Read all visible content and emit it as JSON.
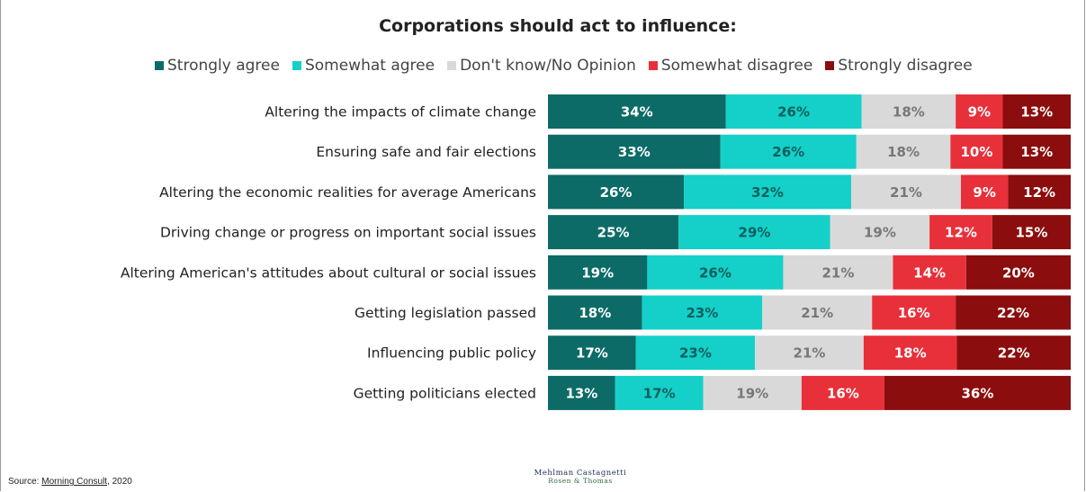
{
  "chart_data": {
    "type": "bar",
    "orientation": "horizontal",
    "stacked": true,
    "title": "Corporations should act to influence:",
    "categories": [
      "Altering the impacts of climate change",
      "Ensuring safe and fair elections",
      "Altering the economic realities for average Americans",
      "Driving change or progress on important social issues",
      "Altering American's attitudes about cultural or social issues",
      "Getting legislation passed",
      "Influencing public policy",
      "Getting politicians elected"
    ],
    "series": [
      {
        "name": "Strongly agree",
        "color": "#0c6b67",
        "label_color": "#ffffff",
        "values": [
          34,
          33,
          26,
          25,
          19,
          18,
          17,
          13
        ]
      },
      {
        "name": "Somewhat agree",
        "color": "#14d0c9",
        "label_color": "#0c5f5b",
        "values": [
          26,
          26,
          32,
          29,
          26,
          23,
          23,
          17
        ]
      },
      {
        "name": "Don't know/No Opinion",
        "color": "#d9d9d9",
        "label_color": "#777777",
        "values": [
          18,
          18,
          21,
          19,
          21,
          21,
          21,
          19
        ]
      },
      {
        "name": "Somewhat disagree",
        "color": "#e8303a",
        "label_color": "#ffffff",
        "values": [
          9,
          10,
          9,
          12,
          14,
          16,
          18,
          16
        ]
      },
      {
        "name": "Strongly disagree",
        "color": "#8b0d0d",
        "label_color": "#ffffff",
        "values": [
          13,
          13,
          12,
          15,
          20,
          22,
          22,
          36
        ]
      }
    ],
    "value_suffix": "%",
    "legend_position": "top",
    "grid": false
  },
  "footer": {
    "source_prefix": "Source: ",
    "source_link": "Morning Consult",
    "source_suffix": ", 2020",
    "logo_line1": "Mehlman Castagnetti",
    "logo_line2": "Rosen & Thomas"
  }
}
